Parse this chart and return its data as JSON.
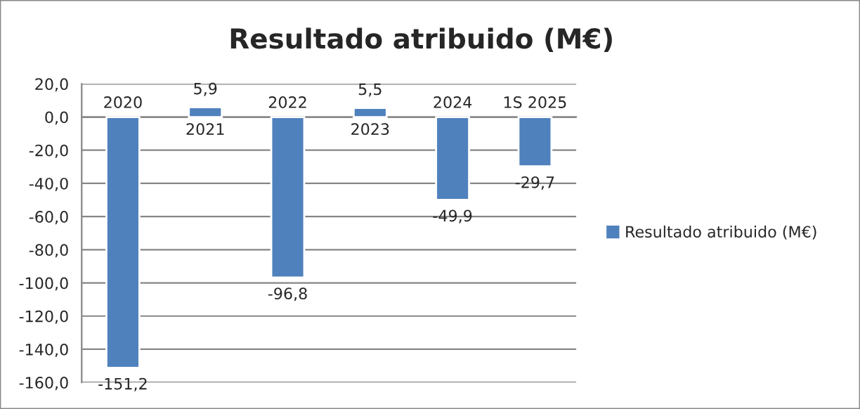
{
  "chart_data": {
    "type": "bar",
    "title": "Resultado atribuido (M€)",
    "categories": [
      "2020",
      "2021",
      "2022",
      "2023",
      "2024",
      "1S 2025"
    ],
    "series": [
      {
        "name": "Resultado atribuido (M€)",
        "color": "#4f81bd",
        "values": [
          -151.2,
          5.9,
          -96.8,
          5.5,
          -49.9,
          -29.7
        ]
      }
    ],
    "value_labels": [
      "-151,2",
      "5,9",
      "-96,8",
      "5,5",
      "-49,9",
      "-29,7"
    ],
    "ylim": [
      -160,
      20
    ],
    "yticks": [
      {
        "value": -160,
        "label": "-160,0"
      },
      {
        "value": -140,
        "label": "-140,0"
      },
      {
        "value": -120,
        "label": "-120,0"
      },
      {
        "value": -100,
        "label": "-100,0"
      },
      {
        "value": -80,
        "label": "-80,0"
      },
      {
        "value": -60,
        "label": "-60,0"
      },
      {
        "value": -40,
        "label": "-40,0"
      },
      {
        "value": -20,
        "label": "-20,0"
      },
      {
        "value": 0,
        "label": "0,0"
      },
      {
        "value": 20,
        "label": "20,0"
      }
    ],
    "grid": "y",
    "legend": "right"
  }
}
